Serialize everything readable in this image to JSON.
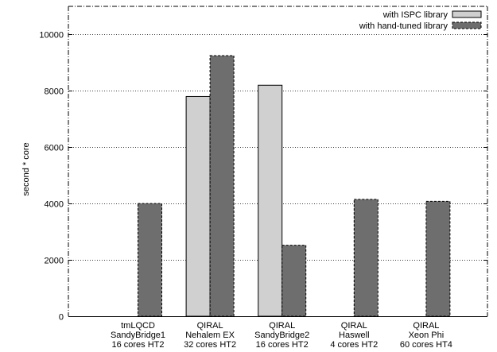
{
  "chart_data": {
    "type": "bar",
    "categories": [
      [
        "tmLQCD",
        "SandyBridge1",
        "16 cores HT2"
      ],
      [
        "QIRAL",
        "Nehalem EX",
        "32 cores HT2"
      ],
      [
        "QIRAL",
        "SandyBridge2",
        "16 cores HT2"
      ],
      [
        "QIRAL",
        "Haswell",
        "4 cores HT2"
      ],
      [
        "QIRAL",
        "Xeon Phi",
        "60 cores HT4"
      ]
    ],
    "series": [
      {
        "name": "with ISPC library",
        "values": [
          null,
          7800,
          8200,
          null,
          null
        ],
        "color": "#d0d0d0",
        "dashed": false
      },
      {
        "name": "with hand-tuned library",
        "values": [
          4000,
          9250,
          2520,
          4150,
          4080
        ],
        "color": "#6e6e6e",
        "dashed": true
      }
    ],
    "ylabel": "second * core",
    "xlabel": "",
    "yticks": [
      0,
      2000,
      4000,
      6000,
      8000,
      10000
    ],
    "ylim": [
      0,
      11000
    ],
    "grid": true,
    "legend_position": "top-right"
  }
}
